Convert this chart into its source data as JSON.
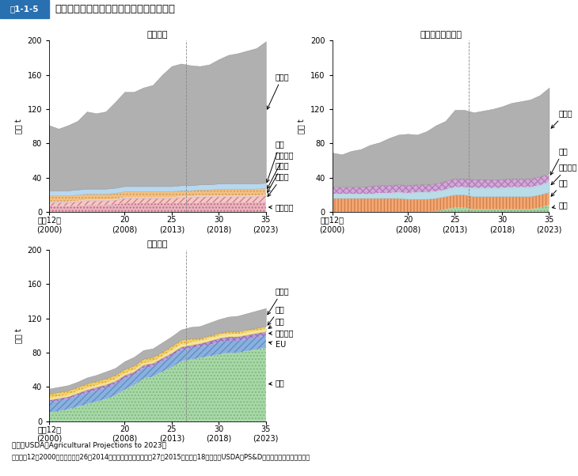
{
  "title_label": "図1-1-5",
  "title_text": "世界各国の穀物等の輸入量の推移と見通し",
  "subtitle_wheat": "（小麦）",
  "subtitle_corn": "（とうもろこし）",
  "subtitle_soy": "（大豆）",
  "ylabel": "百万 t",
  "footnote1": "資料：USDA「Agricultural Projections to 2023」",
  "footnote2": "注：平成12（2000）年から平成26（2014）年までの数値は、平成27（2015）年３月18日時点のUSDA「PS&D」の数値を利用している。",
  "years": [
    2000,
    2001,
    2002,
    2003,
    2004,
    2005,
    2006,
    2007,
    2008,
    2009,
    2010,
    2011,
    2012,
    2013,
    2014,
    2015,
    2016,
    2017,
    2018,
    2019,
    2020,
    2021,
    2022,
    2023
  ],
  "wheat_egypt": [
    7,
    7,
    7,
    7,
    8,
    8,
    8,
    9,
    10,
    10,
    10,
    10,
    10,
    10,
    10,
    10,
    11,
    11,
    11,
    11,
    11,
    11,
    11,
    11
  ],
  "wheat_indo": [
    4,
    4,
    4,
    5,
    5,
    5,
    5,
    5,
    6,
    6,
    6,
    6,
    6,
    6,
    7,
    7,
    7,
    7,
    7,
    7,
    7,
    7,
    7,
    8
  ],
  "wheat_india": [
    1,
    1,
    1,
    1,
    1,
    1,
    1,
    1,
    1,
    1,
    1,
    1,
    1,
    1,
    1,
    1,
    1,
    1,
    1,
    1,
    1,
    1,
    1,
    1
  ],
  "wheat_brazil": [
    7,
    7,
    7,
    7,
    7,
    7,
    7,
    7,
    7,
    7,
    7,
    7,
    7,
    7,
    7,
    7,
    7,
    7,
    8,
    8,
    8,
    8,
    8,
    8
  ],
  "wheat_japan": [
    6,
    6,
    6,
    6,
    6,
    6,
    6,
    6,
    6,
    6,
    6,
    6,
    6,
    6,
    6,
    6,
    6,
    6,
    6,
    6,
    6,
    6,
    6,
    6
  ],
  "wheat_other": [
    76,
    72,
    76,
    80,
    90,
    88,
    90,
    100,
    110,
    110,
    115,
    118,
    130,
    140,
    142,
    140,
    138,
    140,
    145,
    150,
    152,
    155,
    158,
    165
  ],
  "corn_china": [
    0,
    0,
    0,
    0,
    0,
    0,
    0,
    0,
    0,
    0,
    0,
    1,
    3,
    5,
    5,
    3,
    3,
    3,
    3,
    3,
    3,
    3,
    5,
    8
  ],
  "corn_japan": [
    16,
    16,
    16,
    16,
    16,
    16,
    16,
    16,
    15,
    15,
    15,
    15,
    15,
    15,
    15,
    15,
    15,
    15,
    15,
    15,
    15,
    15,
    15,
    15
  ],
  "corn_mexico": [
    5,
    5,
    5,
    5,
    5,
    6,
    6,
    7,
    7,
    8,
    8,
    8,
    8,
    9,
    9,
    10,
    10,
    10,
    10,
    11,
    11,
    11,
    11,
    12
  ],
  "corn_korea": [
    8,
    8,
    8,
    8,
    9,
    9,
    9,
    9,
    9,
    9,
    9,
    9,
    10,
    10,
    10,
    10,
    10,
    10,
    10,
    10,
    10,
    10,
    10,
    10
  ],
  "corn_other": [
    40,
    38,
    42,
    44,
    48,
    50,
    55,
    58,
    60,
    58,
    62,
    68,
    70,
    80,
    80,
    78,
    80,
    82,
    85,
    88,
    90,
    92,
    95,
    100
  ],
  "soy_china": [
    10,
    12,
    14,
    17,
    20,
    23,
    26,
    30,
    37,
    42,
    50,
    52,
    58,
    63,
    70,
    72,
    74,
    76,
    78,
    80,
    80,
    82,
    84,
    86
  ],
  "soy_eu": [
    12,
    12,
    12,
    13,
    13,
    13,
    13,
    13,
    13,
    12,
    12,
    12,
    12,
    13,
    13,
    13,
    13,
    13,
    14,
    14,
    14,
    14,
    14,
    14
  ],
  "soy_mexico": [
    3,
    3,
    3,
    3,
    4,
    4,
    4,
    4,
    4,
    4,
    4,
    4,
    4,
    4,
    4,
    4,
    4,
    5,
    5,
    5,
    5,
    5,
    5,
    5
  ],
  "soy_taiwan": [
    2,
    2,
    2,
    2,
    2,
    2,
    2,
    2,
    2,
    2,
    2,
    2,
    2,
    3,
    3,
    3,
    3,
    3,
    3,
    3,
    3,
    3,
    3,
    3
  ],
  "soy_japan": [
    5,
    5,
    5,
    5,
    5,
    5,
    5,
    5,
    5,
    5,
    5,
    5,
    5,
    5,
    5,
    5,
    3,
    3,
    3,
    3,
    3,
    3,
    3,
    3
  ],
  "soy_other": [
    6,
    6,
    6,
    6,
    7,
    7,
    8,
    8,
    9,
    10,
    10,
    10,
    11,
    11,
    12,
    13,
    14,
    15,
    16,
    17,
    18,
    19,
    20,
    21
  ],
  "xtick_years": [
    2000,
    2008,
    2013,
    2018,
    2023
  ],
  "xtick_labels": [
    "平成12年\n(2000)",
    "20\n(2008)",
    "25\n(2013)",
    "30\n(2018)",
    "35\n(2023)"
  ],
  "title_bg": "#c8e8f0",
  "title_label_bg": "#2970b0",
  "title_label_fg": "#ffffff"
}
